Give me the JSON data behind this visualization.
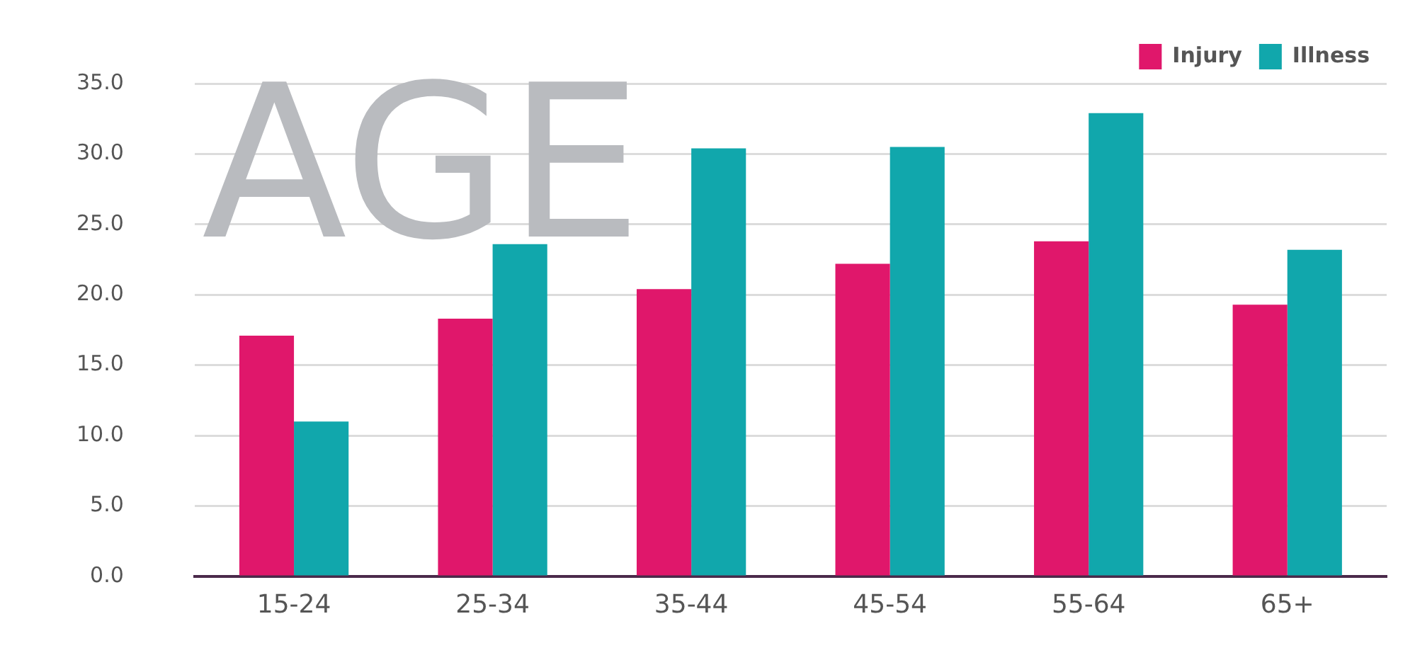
{
  "chart_data": {
    "type": "bar",
    "title": "AGE",
    "categories": [
      "15-24",
      "25-34",
      "35-44",
      "45-54",
      "55-64",
      "65+"
    ],
    "series": [
      {
        "name": "Injury",
        "color": "#e0176b",
        "values": [
          17.1,
          18.3,
          20.4,
          22.2,
          23.8,
          19.3
        ]
      },
      {
        "name": "Illness",
        "color": "#11a7ac",
        "values": [
          11.0,
          23.6,
          30.4,
          30.5,
          32.9,
          23.2
        ]
      }
    ],
    "ylim": [
      0,
      35
    ],
    "yticks": [
      {
        "value": 0,
        "label": "0.0"
      },
      {
        "value": 5,
        "label": "5.0"
      },
      {
        "value": 10,
        "label": "10.0"
      },
      {
        "value": 15,
        "label": "15.0"
      },
      {
        "value": 20,
        "label": "20.0"
      },
      {
        "value": 25,
        "label": "25.0"
      },
      {
        "value": 30,
        "label": "30.0"
      },
      {
        "value": 35,
        "label": "35.0"
      }
    ],
    "grid": "y",
    "legend": "top right"
  }
}
